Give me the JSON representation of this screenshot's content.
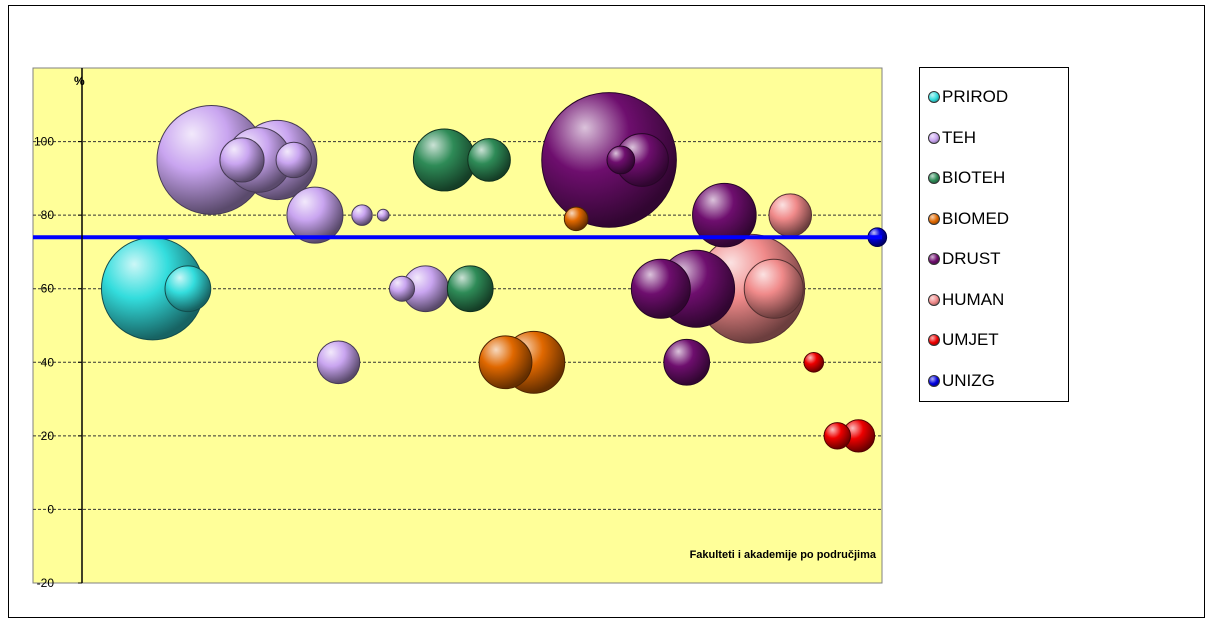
{
  "chart_data": {
    "type": "bubble",
    "title": "",
    "ylabel": "%",
    "xlabel": "Fakulteti i akademije po područjima",
    "ylim": [
      -20,
      120
    ],
    "yticks": [
      -20,
      0,
      20,
      40,
      60,
      80,
      100
    ],
    "grid": true,
    "plot_background": "#FFFF99",
    "legend_position": "right",
    "reference_line": {
      "series": "UNIZG",
      "y": 74,
      "color": "#0000FF"
    },
    "series": [
      {
        "name": "PRIROD",
        "color": "#33DDDD",
        "points": [
          {
            "x": 3,
            "y": 60,
            "size": 1500
          },
          {
            "x": 4.5,
            "y": 60,
            "size": 300
          }
        ]
      },
      {
        "name": "TEH",
        "color": "#C9A5F0",
        "points": [
          {
            "x": 5.5,
            "y": 95,
            "size": 1700
          },
          {
            "x": 6.8,
            "y": 95,
            "size": 280
          },
          {
            "x": 7.5,
            "y": 95,
            "size": 600
          },
          {
            "x": 8.3,
            "y": 95,
            "size": 900
          },
          {
            "x": 9,
            "y": 95,
            "size": 180
          },
          {
            "x": 9.9,
            "y": 80,
            "size": 450
          },
          {
            "x": 11.9,
            "y": 80,
            "size": 60
          },
          {
            "x": 12.8,
            "y": 80,
            "size": 20
          },
          {
            "x": 10.9,
            "y": 40,
            "size": 260
          },
          {
            "x": 13.6,
            "y": 60,
            "size": 90
          },
          {
            "x": 14.6,
            "y": 60,
            "size": 300
          }
        ]
      },
      {
        "name": "BIOTEH",
        "color": "#2E8B57",
        "points": [
          {
            "x": 15.4,
            "y": 95,
            "size": 550
          },
          {
            "x": 17.3,
            "y": 95,
            "size": 260
          },
          {
            "x": 16.5,
            "y": 60,
            "size": 300
          }
        ]
      },
      {
        "name": "BIOMED",
        "color": "#E06800",
        "points": [
          {
            "x": 18,
            "y": 40,
            "size": 400
          },
          {
            "x": 19.2,
            "y": 40,
            "size": 550
          },
          {
            "x": 21,
            "y": 79,
            "size": 80
          }
        ]
      },
      {
        "name": "DRUST",
        "color": "#6E0E6E",
        "points": [
          {
            "x": 22.4,
            "y": 95,
            "size": 2600
          },
          {
            "x": 22.9,
            "y": 95,
            "size": 110
          },
          {
            "x": 23.8,
            "y": 95,
            "size": 400
          },
          {
            "x": 24.6,
            "y": 60,
            "size": 500
          },
          {
            "x": 26.1,
            "y": 60,
            "size": 850
          },
          {
            "x": 27.3,
            "y": 80,
            "size": 580
          },
          {
            "x": 25.7,
            "y": 40,
            "size": 300
          }
        ]
      },
      {
        "name": "HUMAN",
        "color": "#F08A8A",
        "points": [
          {
            "x": 30.1,
            "y": 80,
            "size": 260
          },
          {
            "x": 28.4,
            "y": 60,
            "size": 1700
          },
          {
            "x": 29.4,
            "y": 60,
            "size": 500
          }
        ]
      },
      {
        "name": "UMJET",
        "color": "#EE0000",
        "points": [
          {
            "x": 31.1,
            "y": 40,
            "size": 55
          },
          {
            "x": 32.1,
            "y": 20,
            "size": 100
          },
          {
            "x": 33,
            "y": 20,
            "size": 150
          }
        ]
      },
      {
        "name": "UNIZG",
        "color": "#0000DD",
        "points": [
          {
            "x": 33.8,
            "y": 74,
            "size": 50
          }
        ]
      }
    ]
  }
}
